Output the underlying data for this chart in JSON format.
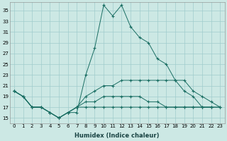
{
  "xlabel": "Humidex (Indice chaleur)",
  "bg_color": "#cce8e4",
  "line_color": "#1a6e63",
  "grid_color": "#a0cccc",
  "series": [
    {
      "x": [
        0,
        1,
        2,
        3,
        4,
        5,
        6,
        7,
        8,
        9,
        10,
        11,
        12,
        13,
        14,
        15,
        16,
        17,
        18,
        19,
        20,
        21,
        22,
        23
      ],
      "y": [
        20,
        19,
        17,
        17,
        16,
        15,
        16,
        16,
        23,
        28,
        36,
        34,
        36,
        32,
        30,
        29,
        26,
        25,
        22,
        20,
        19,
        17,
        17,
        null
      ]
    },
    {
      "x": [
        0,
        1,
        2,
        3,
        4,
        5,
        6,
        7,
        8,
        9,
        10,
        11,
        12,
        13,
        14,
        15,
        16,
        17,
        18,
        19,
        20,
        21,
        22,
        23
      ],
      "y": [
        20,
        19,
        17,
        17,
        16,
        15,
        16,
        17,
        19,
        20,
        21,
        21,
        22,
        22,
        22,
        22,
        22,
        22,
        22,
        22,
        20,
        19,
        18,
        17
      ]
    },
    {
      "x": [
        0,
        1,
        2,
        3,
        4,
        5,
        6,
        7,
        8,
        9,
        10,
        11,
        12,
        13,
        14,
        15,
        16,
        17,
        18,
        19,
        20,
        21,
        22,
        23
      ],
      "y": [
        20,
        19,
        17,
        17,
        16,
        15,
        16,
        17,
        18,
        18,
        19,
        19,
        19,
        19,
        19,
        18,
        18,
        17,
        17,
        17,
        17,
        17,
        17,
        17
      ]
    },
    {
      "x": [
        0,
        1,
        2,
        3,
        4,
        5,
        6,
        7,
        8,
        9,
        10,
        11,
        12,
        13,
        14,
        15,
        16,
        17,
        18,
        19,
        20,
        21,
        22,
        23
      ],
      "y": [
        20,
        19,
        17,
        17,
        16,
        15,
        16,
        17,
        17,
        17,
        17,
        17,
        17,
        17,
        17,
        17,
        17,
        17,
        17,
        17,
        17,
        17,
        17,
        17
      ]
    }
  ],
  "ylim": [
    14.0,
    36.5
  ],
  "xlim": [
    -0.5,
    23.5
  ],
  "yticks": [
    15,
    17,
    19,
    21,
    23,
    25,
    27,
    29,
    31,
    33,
    35
  ],
  "xticks": [
    0,
    1,
    2,
    3,
    4,
    5,
    6,
    7,
    8,
    9,
    10,
    11,
    12,
    13,
    14,
    15,
    16,
    17,
    18,
    19,
    20,
    21,
    22,
    23
  ],
  "xlabel_fontsize": 6.0,
  "tick_fontsize": 5.0
}
